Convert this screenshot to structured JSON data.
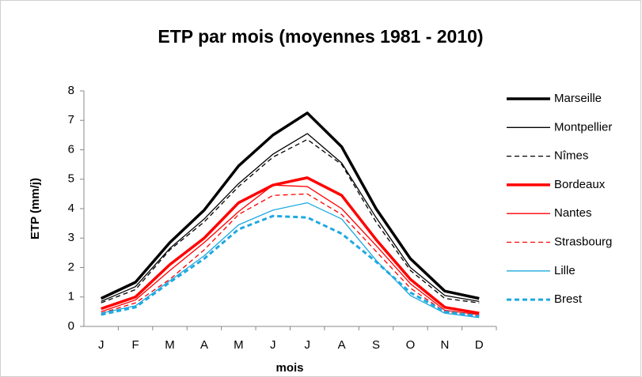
{
  "chart_data": {
    "type": "line",
    "title": "ETP  par mois (moyennes 1981 - 2010)",
    "x_label": "mois",
    "y_label": "ETP (mm/j)",
    "categories": [
      "J",
      "F",
      "M",
      "A",
      "M",
      "J",
      "J",
      "A",
      "S",
      "O",
      "N",
      "D"
    ],
    "ylim": [
      0,
      8
    ],
    "yticks": [
      0,
      1,
      2,
      3,
      4,
      5,
      6,
      7,
      8
    ],
    "legend": "right",
    "series": [
      {
        "name": "Marseille",
        "color": "#000000",
        "width": 3.5,
        "dash": false,
        "values": [
          0.95,
          1.5,
          2.85,
          3.95,
          5.45,
          6.5,
          7.25,
          6.1,
          4.0,
          2.3,
          1.2,
          0.95
        ]
      },
      {
        "name": "Montpellier",
        "color": "#000000",
        "width": 1.3,
        "dash": false,
        "values": [
          0.85,
          1.35,
          2.65,
          3.65,
          4.85,
          5.85,
          6.55,
          5.55,
          3.7,
          2.0,
          1.05,
          0.85
        ]
      },
      {
        "name": "Nîmes",
        "color": "#000000",
        "width": 1.3,
        "dash": true,
        "values": [
          0.8,
          1.25,
          2.6,
          3.55,
          4.75,
          5.75,
          6.35,
          5.5,
          3.55,
          1.9,
          0.95,
          0.8
        ]
      },
      {
        "name": "Bordeaux",
        "color": "#ff0000",
        "width": 3.5,
        "dash": false,
        "values": [
          0.6,
          1.0,
          2.1,
          3.0,
          4.2,
          4.8,
          5.05,
          4.45,
          2.95,
          1.6,
          0.65,
          0.45
        ]
      },
      {
        "name": "Nantes",
        "color": "#ff0000",
        "width": 1.3,
        "dash": false,
        "values": [
          0.5,
          0.9,
          1.9,
          2.85,
          3.9,
          4.8,
          4.75,
          4.0,
          2.75,
          1.45,
          0.55,
          0.4
        ]
      },
      {
        "name": "Strasbourg",
        "color": "#ff0000",
        "width": 1.3,
        "dash": true,
        "values": [
          0.45,
          0.8,
          1.6,
          2.6,
          3.8,
          4.45,
          4.5,
          3.8,
          2.55,
          1.3,
          0.5,
          0.35
        ]
      },
      {
        "name": "Lille",
        "color": "#1fa9e1",
        "width": 1.3,
        "dash": false,
        "values": [
          0.45,
          0.7,
          1.55,
          2.4,
          3.45,
          3.95,
          4.2,
          3.65,
          2.25,
          1.05,
          0.45,
          0.3
        ]
      },
      {
        "name": "Brest",
        "color": "#1fa9e1",
        "width": 3,
        "dash": true,
        "values": [
          0.4,
          0.65,
          1.5,
          2.3,
          3.3,
          3.75,
          3.7,
          3.15,
          2.2,
          1.15,
          0.5,
          0.35
        ]
      }
    ]
  }
}
